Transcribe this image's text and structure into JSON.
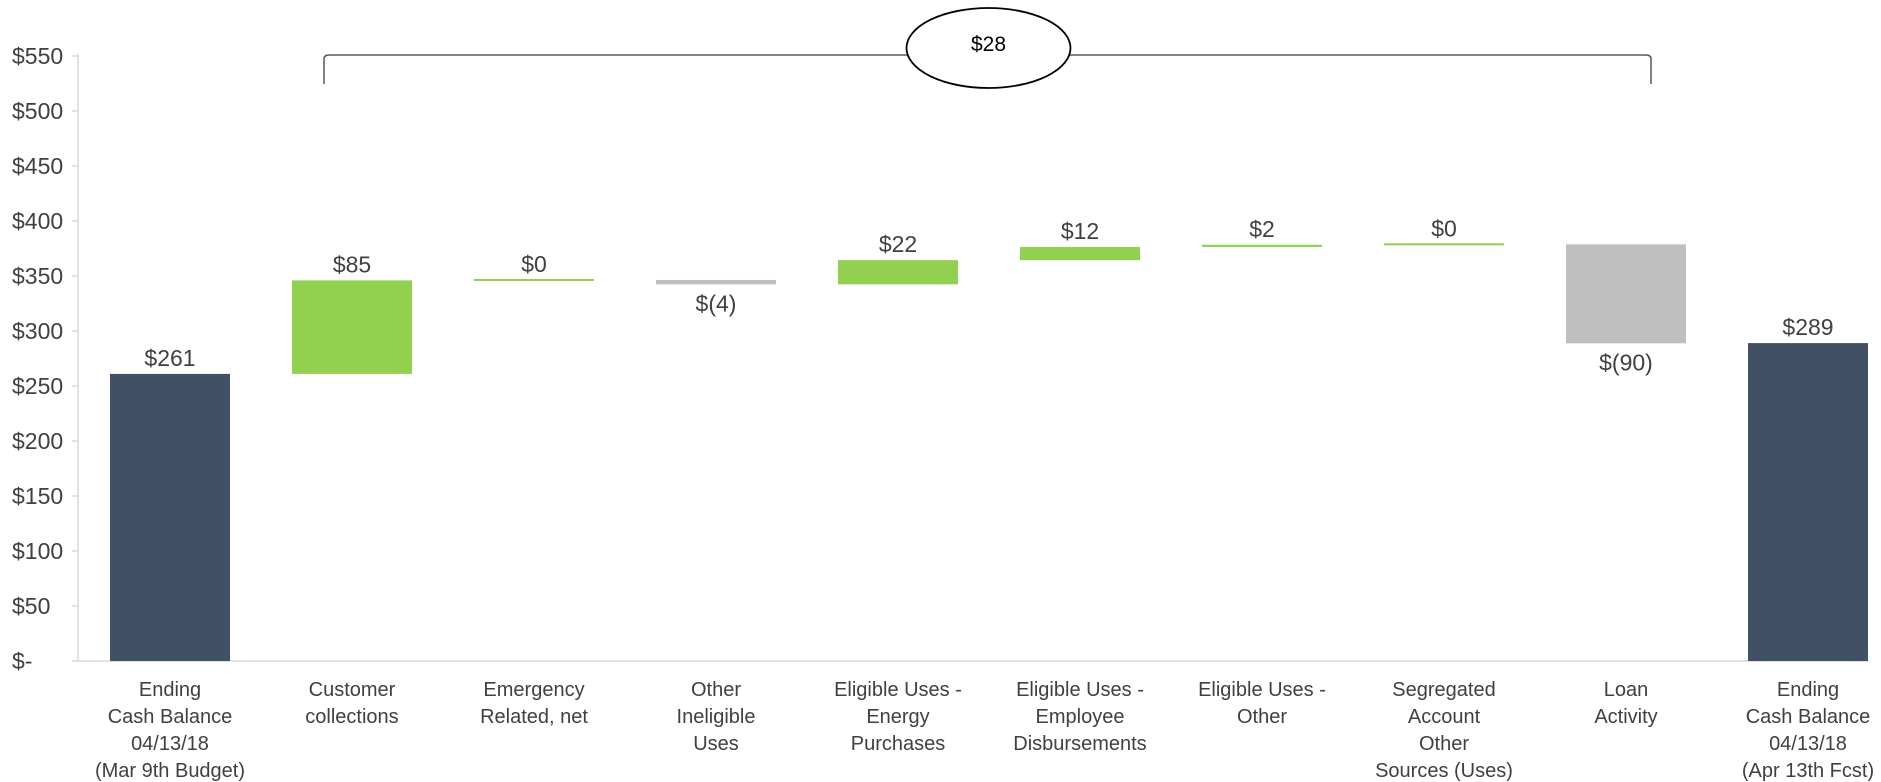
{
  "chart_data": {
    "type": "bar",
    "subtype": "waterfall",
    "y_ticks": [
      "$550",
      "$500",
      "$450",
      "$400",
      "$350",
      "$300",
      "$250",
      "$200",
      "$150",
      "$100",
      "$50",
      "$-"
    ],
    "ylim": [
      0,
      550
    ],
    "grid": false,
    "bars": [
      {
        "category": [
          "Ending",
          "Cash Balance",
          "04/13/18",
          "(Mar 9th Budget)"
        ],
        "kind": "total",
        "start": 0,
        "end": 261,
        "label": "$261"
      },
      {
        "category": [
          "Customer",
          "collections"
        ],
        "kind": "increase",
        "start": 261,
        "end": 346,
        "label": "$85"
      },
      {
        "category": [
          "Emergency",
          "Related, net"
        ],
        "kind": "increase",
        "start": 346,
        "end": 346.4,
        "label": "$0"
      },
      {
        "category": [
          "Other",
          "Ineligible",
          "Uses"
        ],
        "kind": "decrease",
        "start": 346.4,
        "end": 342.4,
        "label": "$(4)"
      },
      {
        "category": [
          "Eligible Uses -",
          "Energy",
          "Purchases"
        ],
        "kind": "increase",
        "start": 342.4,
        "end": 364.4,
        "label": "$22"
      },
      {
        "category": [
          "Eligible Uses -",
          "Employee",
          "Disbursements"
        ],
        "kind": "increase",
        "start": 364.4,
        "end": 376.4,
        "label": "$12"
      },
      {
        "category": [
          "Eligible Uses -",
          "Other"
        ],
        "kind": "increase",
        "start": 376.4,
        "end": 378.4,
        "label": "$2"
      },
      {
        "category": [
          "Segregated",
          "Account",
          "Other",
          "Sources (Uses)"
        ],
        "kind": "increase",
        "start": 378.4,
        "end": 378.8,
        "label": "$0"
      },
      {
        "category": [
          "Loan",
          "Activity"
        ],
        "kind": "decrease",
        "start": 378.8,
        "end": 288.8,
        "label": "$(90)"
      },
      {
        "category": [
          "Ending",
          "Cash Balance",
          "04/13/18",
          "(Apr 13th Fcst)"
        ],
        "kind": "total",
        "start": 0,
        "end": 289,
        "label": "$289"
      }
    ],
    "callout": {
      "label": "$28",
      "bracket_from": 1,
      "bracket_to": 8
    },
    "colors": {
      "total": "#425066",
      "increase": "#92d050",
      "decrease": "#bfbfbf",
      "axis": "#d9d9d9",
      "text": "#404040"
    }
  }
}
